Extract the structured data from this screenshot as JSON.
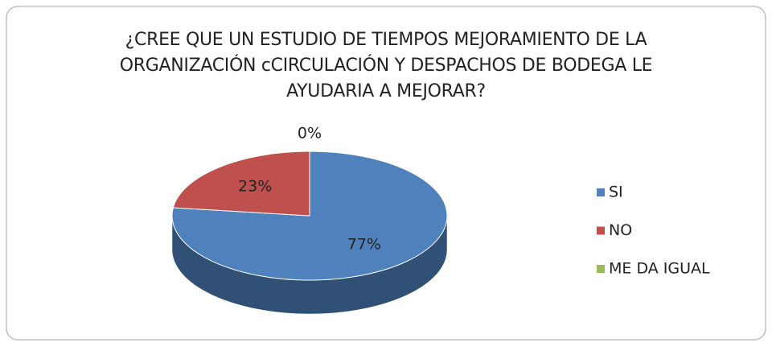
{
  "chart_data": {
    "type": "pie3d",
    "title": "¿CREE QUE UN ESTUDIO DE TIEMPOS  MEJORAMIENTO DE LA ORGANIZACIÓN cCIRCULACIÓN Y DESPACHOS DE BODEGA LE AYUDARIA A MEJORAR?",
    "categories": [
      "SI",
      "NO",
      "ME DA IGUAL"
    ],
    "values": [
      77,
      23,
      0
    ],
    "value_labels": [
      "77%",
      "23%",
      "0%"
    ],
    "colors": [
      "#4f81bd",
      "#c0504d",
      "#9bbb59"
    ],
    "legend": "right"
  }
}
